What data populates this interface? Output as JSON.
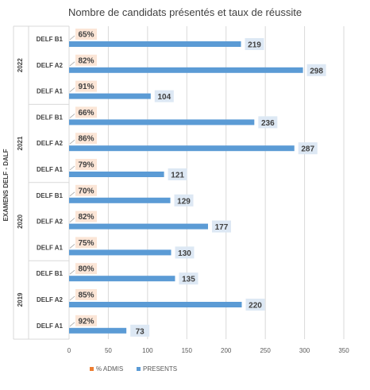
{
  "chart_data": {
    "type": "bar",
    "orientation": "horizontal",
    "title": "Nombre de candidats présentés et taux de réussite",
    "ylabel": "EXAMENS DELF - DALF",
    "xlabel": "",
    "xlim": [
      0,
      350
    ],
    "xticks": [
      "0",
      "50",
      "100",
      "150",
      "200",
      "250",
      "300",
      "350"
    ],
    "grid": "vertical",
    "legend_position": "bottom",
    "groups": [
      {
        "label": "2022",
        "rows": [
          {
            "category": "DELF B1",
            "presents": 219,
            "admis_pct": "65%"
          },
          {
            "category": "DELF A2",
            "presents": 298,
            "admis_pct": "82%"
          },
          {
            "category": "DELF A1",
            "presents": 104,
            "admis_pct": "91%"
          }
        ]
      },
      {
        "label": "2021",
        "rows": [
          {
            "category": "DELF B1",
            "presents": 236,
            "admis_pct": "66%"
          },
          {
            "category": "DELF A2",
            "presents": 287,
            "admis_pct": "86%"
          },
          {
            "category": "DELF A1",
            "presents": 121,
            "admis_pct": "79%"
          }
        ]
      },
      {
        "label": "2020",
        "rows": [
          {
            "category": "DELF B1",
            "presents": 129,
            "admis_pct": "70%"
          },
          {
            "category": "DELF A2",
            "presents": 177,
            "admis_pct": "82%"
          },
          {
            "category": "DELF A1",
            "presents": 130,
            "admis_pct": "75%"
          }
        ]
      },
      {
        "label": "2019",
        "rows": [
          {
            "category": "DELF B1",
            "presents": 135,
            "admis_pct": "80%"
          },
          {
            "category": "DELF A2",
            "presents": 220,
            "admis_pct": "85%"
          },
          {
            "category": "DELF A1",
            "presents": 73,
            "admis_pct": "92%"
          }
        ]
      }
    ],
    "series": [
      {
        "name": "% ADMIS",
        "color": "#ed7d31"
      },
      {
        "name": "PRESENTS",
        "color": "#5b9bd5"
      }
    ],
    "colors": {
      "bar": "#5b9bd5",
      "value_label_bg": "#dde8f4",
      "pct_label_bg": "#fbe5d6",
      "grid": "#d9d9d9",
      "text": "#404040"
    }
  }
}
